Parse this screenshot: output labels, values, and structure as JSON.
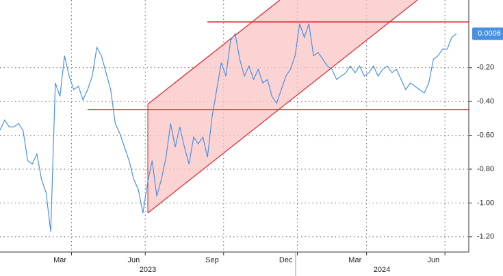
{
  "chart_data": {
    "type": "line",
    "categories": [
      null,
      null,
      null,
      null,
      null,
      null,
      null,
      null,
      null,
      null,
      null,
      null,
      null,
      "Mar",
      null,
      null,
      null,
      null,
      null,
      null,
      null,
      null,
      null,
      null,
      null,
      null,
      null,
      null,
      null,
      "Jun",
      null,
      null,
      null,
      null,
      null,
      null,
      null,
      null,
      null,
      null,
      null,
      null,
      null,
      null,
      null,
      null,
      "Sep",
      null,
      null,
      null,
      null,
      null,
      null,
      null,
      null,
      null,
      null,
      null,
      null,
      null,
      null,
      null,
      "Dec",
      null,
      null,
      null,
      null,
      null,
      null,
      null,
      null,
      null,
      null,
      null,
      null,
      null,
      null,
      "Mar",
      null,
      null,
      null,
      null,
      null,
      null,
      null,
      null,
      null,
      null,
      null,
      null,
      null,
      null,
      null,
      null,
      "Jun",
      null,
      null,
      null,
      null,
      null
    ],
    "x_group_labels": [
      "2023",
      "2024"
    ],
    "series": [
      {
        "color": "#4a90e2",
        "values": [
          -0.57,
          -0.51,
          -0.55,
          -0.55,
          -0.53,
          -0.57,
          -0.75,
          -0.77,
          -0.71,
          -0.86,
          -0.94,
          -1.17,
          -0.29,
          -0.37,
          -0.13,
          -0.25,
          -0.33,
          -0.31,
          -0.39,
          -0.33,
          -0.25,
          -0.08,
          -0.13,
          -0.23,
          -0.33,
          -0.53,
          -0.59,
          -0.67,
          -0.75,
          -0.86,
          -0.92,
          -1.06,
          -0.88,
          -0.75,
          -0.96,
          -0.86,
          -0.73,
          -0.53,
          -0.67,
          -0.55,
          -0.67,
          -0.77,
          -0.61,
          -0.65,
          -0.61,
          -0.73,
          -0.49,
          -0.33,
          -0.17,
          -0.25,
          -0.04,
          0,
          -0.15,
          -0.25,
          -0.19,
          -0.27,
          -0.21,
          -0.29,
          -0.27,
          -0.37,
          -0.41,
          -0.33,
          -0.25,
          -0.21,
          -0.13,
          0.06,
          -0.02,
          0.06,
          -0.13,
          -0.11,
          -0.15,
          -0.19,
          -0.21,
          -0.27,
          -0.25,
          -0.23,
          -0.19,
          -0.23,
          -0.19,
          -0.25,
          -0.23,
          -0.19,
          -0.25,
          -0.21,
          -0.19,
          -0.23,
          -0.21,
          -0.27,
          -0.33,
          -0.29,
          -0.31,
          -0.33,
          -0.35,
          -0.29,
          -0.15,
          -0.13,
          -0.09,
          -0.09,
          -0.02,
          0.0006
        ]
      }
    ],
    "ylim": [
      -1.29,
      0.2
    ],
    "yticks": [
      {
        "value": -1.2,
        "label": "-1.20"
      },
      {
        "value": -1.0,
        "label": "-1.00"
      },
      {
        "value": -0.8,
        "label": "-0.80"
      },
      {
        "value": -0.6,
        "label": "-0.60"
      },
      {
        "value": -0.4,
        "label": "-0.40"
      },
      {
        "value": -0.2,
        "label": "-0.20"
      }
    ],
    "grid": true
  }
}
